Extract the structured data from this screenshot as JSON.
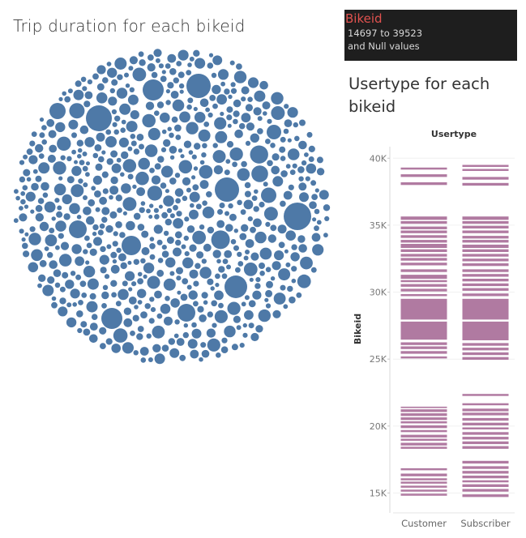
{
  "bubble_title": "Trip duration for each bikeid",
  "filter": {
    "title": "Bikeid",
    "range_text": "14697 to 39523",
    "null_text": "and Null values"
  },
  "usertype_title": "Usertype for each bikeid",
  "colors": {
    "bubble": "#4e79a7",
    "bar": "#b07aa1",
    "filter_bg": "#1e1e1e",
    "filter_title": "#e0524f"
  },
  "chart_data": [
    {
      "type": "bubble",
      "title": "Trip duration for each bikeid",
      "note": "packed bubbles, one per bikeid, size = trip duration; individual values not labeled",
      "bubble_count_approx": 900
    },
    {
      "type": "bar",
      "title": "Usertype for each bikeid",
      "column_header": "Usertype",
      "categories": [
        "Customer",
        "Subscriber"
      ],
      "ylabel": "Bikeid",
      "ylim": [
        14000,
        40500
      ],
      "yticks": [
        15000,
        20000,
        25000,
        30000,
        35000,
        40000
      ],
      "ytick_labels": [
        "15K",
        "20K",
        "25K",
        "30K",
        "35K",
        "40K"
      ],
      "series": [
        {
          "name": "Customer",
          "bikeid_ranges": [
            [
              14800,
              14950
            ],
            [
              15100,
              15250
            ],
            [
              15400,
              15550
            ],
            [
              15700,
              15850
            ],
            [
              15950,
              16100
            ],
            [
              16250,
              16450
            ],
            [
              16700,
              16850
            ],
            [
              18300,
              18450
            ],
            [
              18550,
              18750
            ],
            [
              18900,
              19050
            ],
            [
              19150,
              19350
            ],
            [
              19550,
              19700
            ],
            [
              19850,
              20050
            ],
            [
              20200,
              20350
            ],
            [
              20450,
              20650
            ],
            [
              20750,
              20950
            ],
            [
              21050,
              21250
            ],
            [
              21350,
              21450
            ],
            [
              25050,
              25200
            ],
            [
              25400,
              25600
            ],
            [
              25750,
              25950
            ],
            [
              26050,
              26250
            ],
            [
              26450,
              27800
            ],
            [
              27950,
              29500
            ],
            [
              29700,
              29850
            ],
            [
              30050,
              30250
            ],
            [
              30400,
              30600
            ],
            [
              30750,
              30900
            ],
            [
              31000,
              31300
            ],
            [
              31500,
              31700
            ],
            [
              32000,
              32200
            ],
            [
              32350,
              32550
            ],
            [
              32650,
              32850
            ],
            [
              33000,
              33200
            ],
            [
              33300,
              33600
            ],
            [
              33700,
              33900
            ],
            [
              34050,
              34250
            ],
            [
              34400,
              34600
            ],
            [
              34700,
              34900
            ],
            [
              35100,
              35300
            ],
            [
              35400,
              35650
            ],
            [
              38000,
              38200
            ],
            [
              38600,
              38800
            ],
            [
              39150,
              39300
            ]
          ]
        },
        {
          "name": "Subscriber",
          "bikeid_ranges": [
            [
              14700,
              14900
            ],
            [
              15100,
              15300
            ],
            [
              15450,
              15650
            ],
            [
              15800,
              15950
            ],
            [
              16100,
              16300
            ],
            [
              16450,
              16650
            ],
            [
              16800,
              17000
            ],
            [
              17200,
              17400
            ],
            [
              18300,
              18500
            ],
            [
              18650,
              18850
            ],
            [
              19000,
              19200
            ],
            [
              19350,
              19550
            ],
            [
              19750,
              19900
            ],
            [
              20050,
              20250
            ],
            [
              20400,
              20600
            ],
            [
              20800,
              21000
            ],
            [
              21100,
              21300
            ],
            [
              21550,
              21700
            ],
            [
              22250,
              22400
            ],
            [
              24950,
              25150
            ],
            [
              25300,
              25500
            ],
            [
              25650,
              25850
            ],
            [
              26000,
              26200
            ],
            [
              26400,
              27800
            ],
            [
              27950,
              29500
            ],
            [
              29700,
              29900
            ],
            [
              30100,
              30300
            ],
            [
              30450,
              30650
            ],
            [
              30800,
              31000
            ],
            [
              31150,
              31350
            ],
            [
              31500,
              31700
            ],
            [
              31950,
              32150
            ],
            [
              32300,
              32500
            ],
            [
              32650,
              32850
            ],
            [
              33000,
              33200
            ],
            [
              33300,
              33550
            ],
            [
              33700,
              33900
            ],
            [
              34000,
              34200
            ],
            [
              34400,
              34600
            ],
            [
              34750,
              34950
            ],
            [
              35100,
              35300
            ],
            [
              35400,
              35650
            ],
            [
              37950,
              38150
            ],
            [
              38400,
              38600
            ],
            [
              39050,
              39200
            ],
            [
              39350,
              39500
            ]
          ]
        }
      ]
    }
  ]
}
